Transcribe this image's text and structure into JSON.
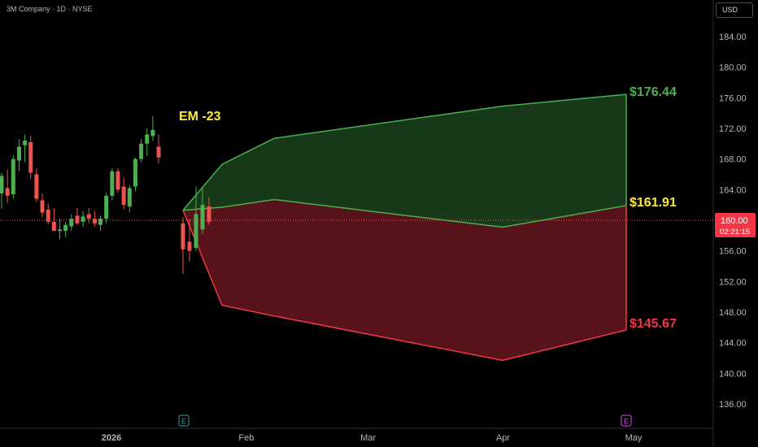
{
  "header": {
    "title": "3M Company · 1D · NYSE",
    "currency": "USD"
  },
  "price_badge": {
    "price": "160.00",
    "countdown": "02:21:15"
  },
  "annotation": {
    "em_label": "EM -23"
  },
  "colors": {
    "up": "#26a69a",
    "bull_line": "#4caf50",
    "bear_line": "#f23645",
    "candle_up": "#4caf50",
    "candle_down": "#ef5350",
    "label_mid": "#ffeb3b"
  },
  "chart_data": {
    "type": "candlestick+area",
    "title": "3M Company · 1D · NYSE",
    "ylim": [
      132.5,
      188.5
    ],
    "yticks": [
      136,
      140,
      144,
      148,
      152,
      156,
      160,
      164,
      168,
      172,
      176,
      180,
      184
    ],
    "ytick_labels": [
      "136.00",
      "140.00",
      "144.00",
      "148.00",
      "152.00",
      "156.00",
      "160.00",
      "164.00",
      "168.00",
      "172.00",
      "176.00",
      "180.00",
      "184.00"
    ],
    "xtick_labels": [
      {
        "label": "2026",
        "bold": true,
        "d": "2026-01-01"
      },
      {
        "label": "Feb",
        "d": "2026-02-01"
      },
      {
        "label": "Mar",
        "d": "2026-03-01"
      },
      {
        "label": "Apr",
        "d": "2026-04-01"
      },
      {
        "label": "May",
        "d": "2026-05-01"
      }
    ],
    "current_price": 160.0,
    "candles": [
      {
        "o": 163.5,
        "h": 166.2,
        "l": 161.5,
        "c": 165.8
      },
      {
        "o": 164.2,
        "h": 166.6,
        "l": 162.2,
        "c": 163.2
      },
      {
        "o": 163.4,
        "h": 168.5,
        "l": 162.8,
        "c": 168.0
      },
      {
        "o": 167.8,
        "h": 170.6,
        "l": 166.4,
        "c": 169.6
      },
      {
        "o": 169.8,
        "h": 171.2,
        "l": 167.6,
        "c": 170.4
      },
      {
        "o": 170.2,
        "h": 171.0,
        "l": 165.4,
        "c": 166.2
      },
      {
        "o": 166.0,
        "h": 166.8,
        "l": 162.4,
        "c": 162.8
      },
      {
        "o": 162.6,
        "h": 163.5,
        "l": 160.4,
        "c": 161.0
      },
      {
        "o": 161.4,
        "h": 162.2,
        "l": 159.5,
        "c": 159.8
      },
      {
        "o": 159.8,
        "h": 161.6,
        "l": 158.6,
        "c": 158.6
      },
      {
        "o": 158.6,
        "h": 160.2,
        "l": 157.5,
        "c": 158.8
      },
      {
        "o": 158.6,
        "h": 159.8,
        "l": 157.8,
        "c": 159.4
      },
      {
        "o": 159.2,
        "h": 160.8,
        "l": 158.6,
        "c": 160.2
      },
      {
        "o": 160.6,
        "h": 161.6,
        "l": 159.4,
        "c": 159.6
      },
      {
        "o": 159.8,
        "h": 161.2,
        "l": 159.1,
        "c": 160.5
      },
      {
        "o": 160.8,
        "h": 161.6,
        "l": 159.6,
        "c": 160.2
      },
      {
        "o": 160.2,
        "h": 161.2,
        "l": 159.2,
        "c": 159.6
      },
      {
        "o": 159.4,
        "h": 160.6,
        "l": 158.6,
        "c": 160.2
      },
      {
        "o": 160.2,
        "h": 163.6,
        "l": 159.6,
        "c": 163.2
      },
      {
        "o": 163.2,
        "h": 166.8,
        "l": 162.6,
        "c": 166.4
      },
      {
        "o": 166.4,
        "h": 166.8,
        "l": 163.6,
        "c": 164.0
      },
      {
        "o": 164.4,
        "h": 165.6,
        "l": 161.4,
        "c": 162.0
      },
      {
        "o": 161.8,
        "h": 164.6,
        "l": 161.0,
        "c": 164.2
      },
      {
        "o": 164.4,
        "h": 168.2,
        "l": 163.8,
        "c": 168.0
      },
      {
        "o": 168.0,
        "h": 170.6,
        "l": 167.6,
        "c": 170.0
      },
      {
        "o": 170.0,
        "h": 172.0,
        "l": 168.4,
        "c": 171.2
      },
      {
        "o": 171.0,
        "h": 173.6,
        "l": 170.4,
        "c": 171.8
      },
      {
        "o": 169.6,
        "h": 171.2,
        "l": 167.4,
        "c": 168.2
      },
      {
        "o": 159.6,
        "h": 160.4,
        "l": 153.0,
        "c": 156.2
      },
      {
        "o": 157.2,
        "h": 160.2,
        "l": 154.6,
        "c": 156.0
      },
      {
        "o": 156.4,
        "h": 164.4,
        "l": 156.0,
        "c": 160.8
      },
      {
        "o": 158.8,
        "h": 164.2,
        "l": 158.2,
        "c": 162.0
      },
      {
        "o": 161.8,
        "h": 163.0,
        "l": 159.4,
        "c": 159.8
      }
    ],
    "expected_move": {
      "label": "EM -23",
      "upper": [
        161.3,
        167.3,
        170.7,
        174.9,
        176.44
      ],
      "middle": [
        161.3,
        161.7,
        162.7,
        159.1,
        161.91
      ],
      "lower": [
        161.3,
        148.9,
        147.5,
        141.7,
        145.67
      ],
      "labels": {
        "upper": "$176.44",
        "middle": "$161.91",
        "lower": "$145.67"
      }
    },
    "events": [
      {
        "label": "E"
      },
      {
        "label": "E"
      }
    ]
  }
}
